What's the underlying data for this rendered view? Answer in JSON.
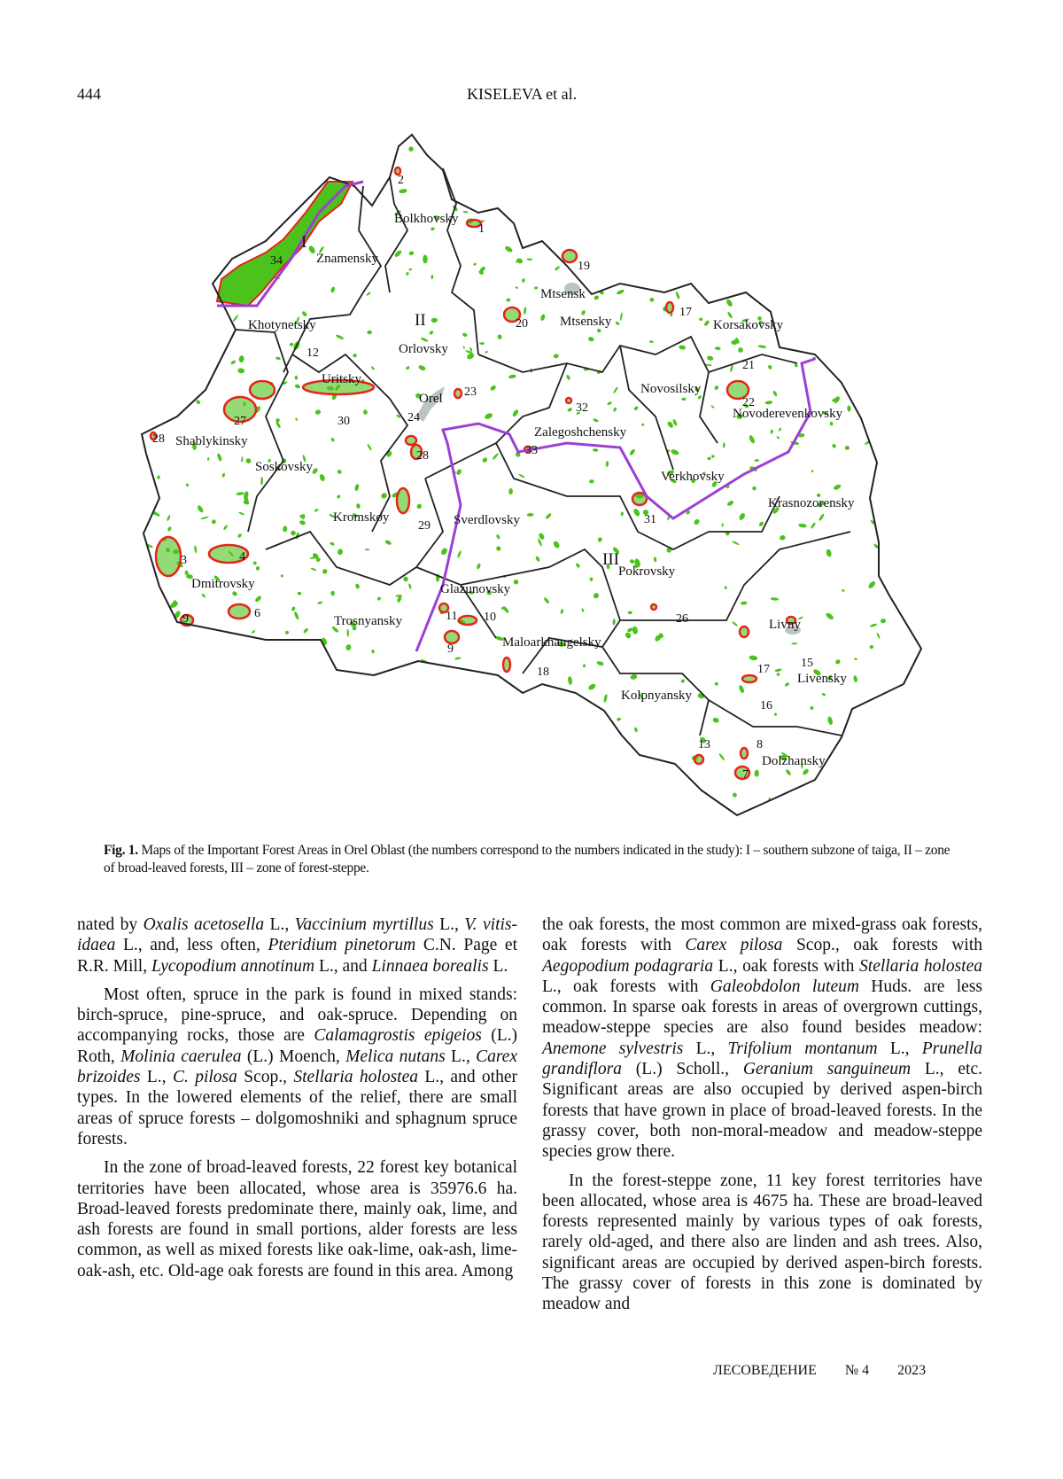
{
  "header": {
    "page_number": "444",
    "running_title": "KISELEVA et al."
  },
  "figure": {
    "districts": [
      "Bolkhovsky",
      "Znamensky",
      "Khotynetsky",
      "Orlovsky",
      "Mtsensk",
      "Mtsensky",
      "Korsakovsky",
      "Uritsky",
      "Orel",
      "Novosilsky",
      "Novoderevenkovsky",
      "Shablykinsky",
      "Zalegoshchensky",
      "Soskovsky",
      "Verkhovsky",
      "Krasnozorensky",
      "Kromskoy",
      "Sverdlovsky",
      "Pokrovsky",
      "Dmitrovsky",
      "Glazunovsky",
      "Trosnyansky",
      "Maloarkhangelsky",
      "Livny",
      "Livensky",
      "Kolpnyansky",
      "Dolzhansky"
    ],
    "zones": [
      "I",
      "II",
      "III"
    ],
    "area_numbers": [
      "2",
      "1",
      "19",
      "34",
      "20",
      "17",
      "12",
      "21",
      "22",
      "23",
      "32",
      "30",
      "24",
      "27",
      "28",
      "28",
      "33",
      "31",
      "29",
      "3",
      "4",
      "9",
      "6",
      "11",
      "10",
      "9",
      "26",
      "18",
      "17",
      "15",
      "16",
      "13",
      "8",
      "7"
    ],
    "colors": {
      "forest": "#4cc31c",
      "key_area": "#e8231a",
      "zone_border": "#9b3fd6",
      "city": "#b9c4c4",
      "border": "#222222"
    },
    "caption_label": "Fig. 1.",
    "caption_text": "Maps of the Important Forest Areas in Orel Oblast (the numbers correspond to the numbers indicated in the study): I – southern subzone of taiga, II – zone of broad-leaved forests, III – zone of forest-steppe."
  },
  "body": {
    "left": [
      {
        "cont": true,
        "segments": [
          {
            "t": "nated by "
          },
          {
            "t": "Oxalis acetosella",
            "i": true
          },
          {
            "t": " L., "
          },
          {
            "t": "Vaccinium myrtillus",
            "i": true
          },
          {
            "t": " L., "
          },
          {
            "t": "V. vitis-idaea",
            "i": true
          },
          {
            "t": " L., and, less often, "
          },
          {
            "t": "Pteridium pinetorum",
            "i": true
          },
          {
            "t": " C.N. Page et R.R. Mill, "
          },
          {
            "t": "Lycopodium annotinum",
            "i": true
          },
          {
            "t": " L., and "
          },
          {
            "t": "Linnaea borealis",
            "i": true
          },
          {
            "t": " L."
          }
        ]
      },
      {
        "segments": [
          {
            "t": "Most often, spruce in the park is found in mixed stands: birch-spruce, pine-spruce, and oak-spruce. Depending on accompanying rocks, those are "
          },
          {
            "t": "Calamagrostis epigeios",
            "i": true
          },
          {
            "t": " (L.) Roth, "
          },
          {
            "t": "Molinia caerulea",
            "i": true
          },
          {
            "t": " (L.) Moench, "
          },
          {
            "t": "Melica nutans",
            "i": true
          },
          {
            "t": " L., "
          },
          {
            "t": "Carex brizoides",
            "i": true
          },
          {
            "t": " L., "
          },
          {
            "t": "C. pilosa",
            "i": true
          },
          {
            "t": " Scop., "
          },
          {
            "t": "Stellaria holostea",
            "i": true
          },
          {
            "t": " L., and other types. In the lowered elements of the relief, there are small areas of spruce forests – dolgomoshniki and sphagnum spruce forests."
          }
        ]
      },
      {
        "segments": [
          {
            "t": "In the zone of broad-leaved forests, 22 forest key botanical territories have been allocated, whose area is 35976.6 ha. Broad-leaved forests predominate there, mainly oak, lime, and ash forests are found in small portions, alder forests are less common, as well as mixed forests like oak-lime, oak-ash, lime-oak-ash, etc. Old-age oak forests are found in this area. Among"
          }
        ]
      }
    ],
    "right": [
      {
        "cont": true,
        "segments": [
          {
            "t": "the oak forests, the most common are mixed-grass oak forests, oak forests with "
          },
          {
            "t": "Carex pilosa",
            "i": true
          },
          {
            "t": " Scop., oak forests with "
          },
          {
            "t": "Aegopodium podagraria",
            "i": true
          },
          {
            "t": " L., oak forests with "
          },
          {
            "t": "Stellaria holostea",
            "i": true
          },
          {
            "t": " L., oak forests with "
          },
          {
            "t": "Galeobdolon luteum",
            "i": true
          },
          {
            "t": " Huds. are less common. In sparse oak forests in areas of overgrown cuttings, meadow-steppe species are also found besides meadow: "
          },
          {
            "t": "Anemone sylvestris",
            "i": true
          },
          {
            "t": " L., "
          },
          {
            "t": "Trifolium montanum",
            "i": true
          },
          {
            "t": " L., "
          },
          {
            "t": "Prunella grandiflora",
            "i": true
          },
          {
            "t": " (L.) Scholl., "
          },
          {
            "t": "Geranium sanguineum",
            "i": true
          },
          {
            "t": " L., etc. Significant areas are also occupied by derived aspen-birch forests that have grown in place of broad-leaved forests. In the grassy cover, both non-moral-meadow and meadow-steppe species grow there."
          }
        ]
      },
      {
        "segments": [
          {
            "t": "In the forest-steppe zone, 11 key forest territories have been allocated, whose area is 4675 ha. These are broad-leaved forests represented mainly by various types of oak forests, rarely old-aged, and there also are linden and ash trees. Also, significant areas are occupied by derived aspen-birch forests. The grassy cover of forests in this zone is dominated by meadow and"
          }
        ]
      }
    ]
  },
  "footer": {
    "journal": "ЛЕСОВЕДЕНИЕ",
    "issue": "№ 4",
    "year": "2023"
  }
}
